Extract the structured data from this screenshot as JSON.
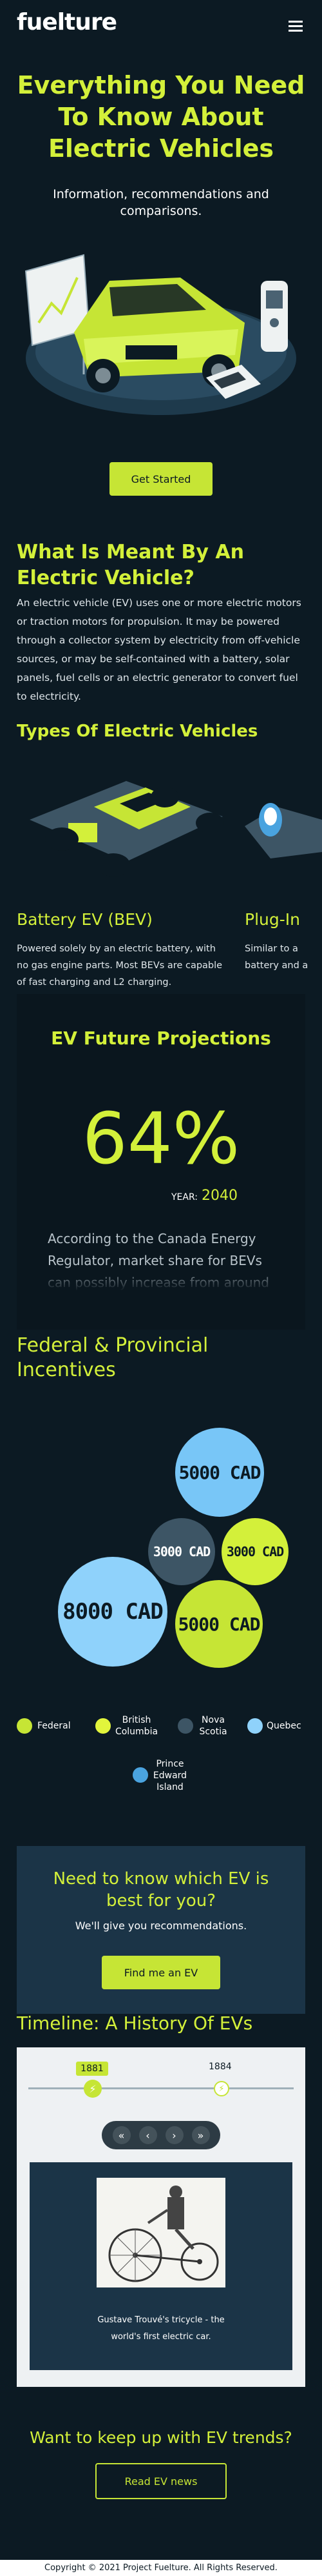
{
  "nav": {
    "logo": "fuelture",
    "menu_icon": "hamburger-menu-icon"
  },
  "hero": {
    "title": "Everything You Need To Know About Electric Vehicles",
    "subtitle": "Information, recommendations and comparisons.",
    "cta": "Get Started",
    "illustration_icon": "electric-car-charging-illustration"
  },
  "definition": {
    "heading": "What Is Meant By An Electric Vehicle?",
    "body": "An electric vehicle (EV) uses one or more electric motors or traction motors for propulsion. It may be powered through a collector system by electricity from off-vehicle sources, or may be self-contained with a battery, solar panels, fuel cells or an electric generator to convert fuel to electricity."
  },
  "types": {
    "heading": "Types Of Electric Vehicles",
    "cards": [
      {
        "title": "Battery EV (BEV)",
        "desc": "Powered solely by an electric battery, with no gas engine parts. Most BEVs are capable of fast charging and L2 charging.",
        "icon": "ev-chassis-battery-icon"
      },
      {
        "title": "Plug-In",
        "desc": "Similar to a battery and a tank and a",
        "icon": "ev-chassis-plug-icon"
      }
    ]
  },
  "projections": {
    "heading": "EV Future Projections",
    "percent": "64%",
    "year_label": "YEAR:",
    "year": "2040",
    "text": "According to the Canada Energy Regulator, market share for BEVs can possibly increase from around"
  },
  "incentives": {
    "heading": "Federal & Provincial Incentives",
    "bubbles": [
      {
        "label": "5000 CAD",
        "color": "#78c6f7"
      },
      {
        "label": "3000 CAD",
        "color": "#3d5565"
      },
      {
        "label": "3000 CAD",
        "color": "#d3f03a"
      },
      {
        "label": "8000 CAD",
        "color": "#8fd2fb"
      },
      {
        "label": "5000 CAD",
        "color": "#c6e535"
      }
    ],
    "legend": [
      {
        "label": "Federal",
        "color": "#c6e535"
      },
      {
        "label": "British Columbia",
        "color": "#e2f53c"
      },
      {
        "label": "Nova Scotia",
        "color": "#3d5565"
      },
      {
        "label": "Quebec",
        "color": "#8fd2fb"
      },
      {
        "label": "Prince Edward Island",
        "color": "#4aa3df"
      }
    ]
  },
  "recommend": {
    "heading": "Need to know which EV is best for you?",
    "sub": "We'll give you recommendations.",
    "cta": "Find me an EV"
  },
  "timeline": {
    "heading": "Timeline: A History Of EVs",
    "years": [
      "1881",
      "1884"
    ],
    "bolt_icon": "lightning-bolt-icon",
    "controls": [
      "«",
      "‹",
      "›",
      "»"
    ],
    "caption": "Gustave Trouvé's tricycle - the world's first electric car.",
    "image_icon": "vintage-tricycle-engraving"
  },
  "news": {
    "heading": "Want to keep up with EV trends?",
    "cta": "Read EV news"
  },
  "footer": {
    "copyright": "Copyright © 2021 Project Fuelture. All Rights Reserved."
  }
}
